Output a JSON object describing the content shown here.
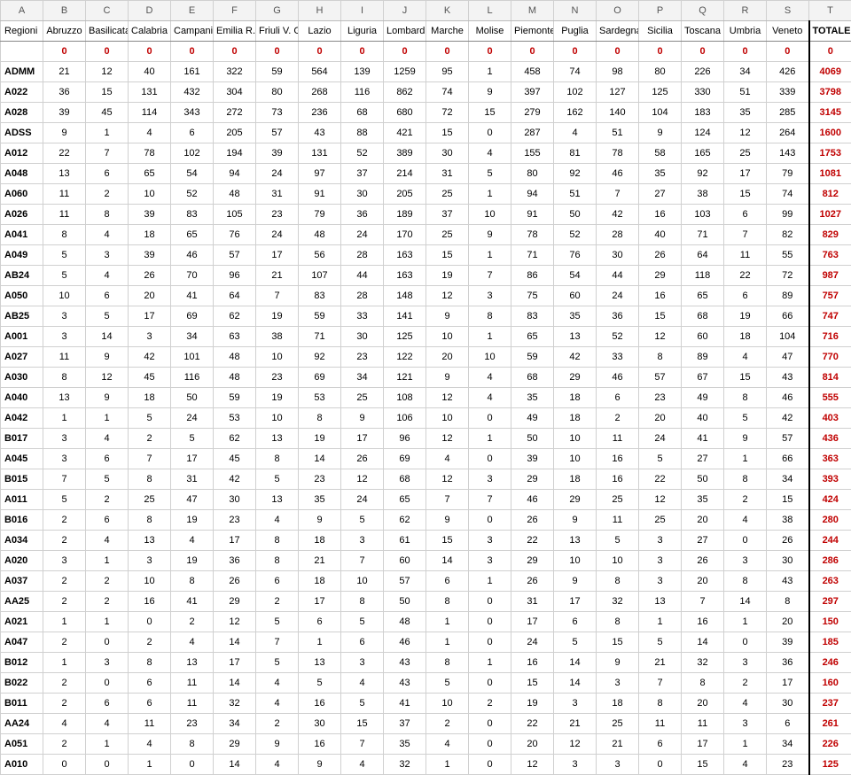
{
  "colors": {
    "total_red": "#c00000",
    "grid": "#d0d0d0",
    "header_bg": "#f3f3f3"
  },
  "column_letters": [
    "A",
    "B",
    "C",
    "D",
    "E",
    "F",
    "G",
    "H",
    "I",
    "J",
    "K",
    "L",
    "M",
    "N",
    "O",
    "P",
    "Q",
    "R",
    "S",
    "T"
  ],
  "region_headers": [
    "Regioni",
    "Abruzzo",
    "Basilicata",
    "Calabria",
    "Campania",
    "Emilia R.",
    "Friuli V. G",
    "Lazio",
    "Liguria",
    "Lombardia",
    "Marche",
    "Molise",
    "Piemonte",
    "Puglia",
    "Sardegna",
    "Sicilia",
    "Toscana",
    "Umbria",
    "Veneto",
    "TOTALE"
  ],
  "rows": [
    {
      "label": "",
      "values": [
        0,
        0,
        0,
        0,
        0,
        0,
        0,
        0,
        0,
        0,
        0,
        0,
        0,
        0,
        0,
        0,
        0,
        0
      ],
      "total": 0,
      "zero": true
    },
    {
      "label": "ADMM",
      "values": [
        21,
        12,
        40,
        161,
        322,
        59,
        564,
        139,
        1259,
        95,
        1,
        458,
        74,
        98,
        80,
        226,
        34,
        426
      ],
      "total": 4069
    },
    {
      "label": "A022",
      "values": [
        36,
        15,
        131,
        432,
        304,
        80,
        268,
        116,
        862,
        74,
        9,
        397,
        102,
        127,
        125,
        330,
        51,
        339
      ],
      "total": 3798
    },
    {
      "label": "A028",
      "values": [
        39,
        45,
        114,
        343,
        272,
        73,
        236,
        68,
        680,
        72,
        15,
        279,
        162,
        140,
        104,
        183,
        35,
        285
      ],
      "total": 3145
    },
    {
      "label": "ADSS",
      "values": [
        9,
        1,
        4,
        6,
        205,
        57,
        43,
        88,
        421,
        15,
        0,
        287,
        4,
        51,
        9,
        124,
        12,
        264
      ],
      "total": 1600
    },
    {
      "label": "A012",
      "values": [
        22,
        7,
        78,
        102,
        194,
        39,
        131,
        52,
        389,
        30,
        4,
        155,
        81,
        78,
        58,
        165,
        25,
        143
      ],
      "total": 1753
    },
    {
      "label": "A048",
      "values": [
        13,
        6,
        65,
        54,
        94,
        24,
        97,
        37,
        214,
        31,
        5,
        80,
        92,
        46,
        35,
        92,
        17,
        79
      ],
      "total": 1081
    },
    {
      "label": "A060",
      "values": [
        11,
        2,
        10,
        52,
        48,
        31,
        91,
        30,
        205,
        25,
        1,
        94,
        51,
        7,
        27,
        38,
        15,
        74
      ],
      "total": 812
    },
    {
      "label": "A026",
      "values": [
        11,
        8,
        39,
        83,
        105,
        23,
        79,
        36,
        189,
        37,
        10,
        91,
        50,
        42,
        16,
        103,
        6,
        99
      ],
      "total": 1027
    },
    {
      "label": "A041",
      "values": [
        8,
        4,
        18,
        65,
        76,
        24,
        48,
        24,
        170,
        25,
        9,
        78,
        52,
        28,
        40,
        71,
        7,
        82
      ],
      "total": 829
    },
    {
      "label": "A049",
      "values": [
        5,
        3,
        39,
        46,
        57,
        17,
        56,
        28,
        163,
        15,
        1,
        71,
        76,
        30,
        26,
        64,
        11,
        55
      ],
      "total": 763
    },
    {
      "label": "AB24",
      "values": [
        5,
        4,
        26,
        70,
        96,
        21,
        107,
        44,
        163,
        19,
        7,
        86,
        54,
        44,
        29,
        118,
        22,
        72
      ],
      "total": 987
    },
    {
      "label": "A050",
      "values": [
        10,
        6,
        20,
        41,
        64,
        7,
        83,
        28,
        148,
        12,
        3,
        75,
        60,
        24,
        16,
        65,
        6,
        89
      ],
      "total": 757
    },
    {
      "label": "AB25",
      "values": [
        3,
        5,
        17,
        69,
        62,
        19,
        59,
        33,
        141,
        9,
        8,
        83,
        35,
        36,
        15,
        68,
        19,
        66
      ],
      "total": 747
    },
    {
      "label": "A001",
      "values": [
        3,
        14,
        3,
        34,
        63,
        38,
        71,
        30,
        125,
        10,
        1,
        65,
        13,
        52,
        12,
        60,
        18,
        104
      ],
      "total": 716
    },
    {
      "label": "A027",
      "values": [
        11,
        9,
        42,
        101,
        48,
        10,
        92,
        23,
        122,
        20,
        10,
        59,
        42,
        33,
        8,
        89,
        4,
        47
      ],
      "total": 770
    },
    {
      "label": "A030",
      "values": [
        8,
        12,
        45,
        116,
        48,
        23,
        69,
        34,
        121,
        9,
        4,
        68,
        29,
        46,
        57,
        67,
        15,
        43
      ],
      "total": 814
    },
    {
      "label": "A040",
      "values": [
        13,
        9,
        18,
        50,
        59,
        19,
        53,
        25,
        108,
        12,
        4,
        35,
        18,
        6,
        23,
        49,
        8,
        46
      ],
      "total": 555
    },
    {
      "label": "A042",
      "values": [
        1,
        1,
        5,
        24,
        53,
        10,
        8,
        9,
        106,
        10,
        0,
        49,
        18,
        2,
        20,
        40,
        5,
        42
      ],
      "total": 403
    },
    {
      "label": "B017",
      "values": [
        3,
        4,
        2,
        5,
        62,
        13,
        19,
        17,
        96,
        12,
        1,
        50,
        10,
        11,
        24,
        41,
        9,
        57
      ],
      "total": 436
    },
    {
      "label": "A045",
      "values": [
        3,
        6,
        7,
        17,
        45,
        8,
        14,
        26,
        69,
        4,
        0,
        39,
        10,
        16,
        5,
        27,
        1,
        66
      ],
      "total": 363
    },
    {
      "label": "B015",
      "values": [
        7,
        5,
        8,
        31,
        42,
        5,
        23,
        12,
        68,
        12,
        3,
        29,
        18,
        16,
        22,
        50,
        8,
        34
      ],
      "total": 393
    },
    {
      "label": "A011",
      "values": [
        5,
        2,
        25,
        47,
        30,
        13,
        35,
        24,
        65,
        7,
        7,
        46,
        29,
        25,
        12,
        35,
        2,
        15
      ],
      "total": 424
    },
    {
      "label": "B016",
      "values": [
        2,
        6,
        8,
        19,
        23,
        4,
        9,
        5,
        62,
        9,
        0,
        26,
        9,
        11,
        25,
        20,
        4,
        38
      ],
      "total": 280
    },
    {
      "label": "A034",
      "values": [
        2,
        4,
        13,
        4,
        17,
        8,
        18,
        3,
        61,
        15,
        3,
        22,
        13,
        5,
        3,
        27,
        0,
        26
      ],
      "total": 244
    },
    {
      "label": "A020",
      "values": [
        3,
        1,
        3,
        19,
        36,
        8,
        21,
        7,
        60,
        14,
        3,
        29,
        10,
        10,
        3,
        26,
        3,
        30
      ],
      "total": 286
    },
    {
      "label": "A037",
      "values": [
        2,
        2,
        10,
        8,
        26,
        6,
        18,
        10,
        57,
        6,
        1,
        26,
        9,
        8,
        3,
        20,
        8,
        43
      ],
      "total": 263
    },
    {
      "label": "AA25",
      "values": [
        2,
        2,
        16,
        41,
        29,
        2,
        17,
        8,
        50,
        8,
        0,
        31,
        17,
        32,
        13,
        7,
        14,
        8
      ],
      "total": 297
    },
    {
      "label": "A021",
      "values": [
        1,
        1,
        0,
        2,
        12,
        5,
        6,
        5,
        48,
        1,
        0,
        17,
        6,
        8,
        1,
        16,
        1,
        20
      ],
      "total": 150
    },
    {
      "label": "A047",
      "values": [
        2,
        0,
        2,
        4,
        14,
        7,
        1,
        6,
        46,
        1,
        0,
        24,
        5,
        15,
        5,
        14,
        0,
        39
      ],
      "total": 185
    },
    {
      "label": "B012",
      "values": [
        1,
        3,
        8,
        13,
        17,
        5,
        13,
        3,
        43,
        8,
        1,
        16,
        14,
        9,
        21,
        32,
        3,
        36
      ],
      "total": 246
    },
    {
      "label": "B022",
      "values": [
        2,
        0,
        6,
        11,
        14,
        4,
        5,
        4,
        43,
        5,
        0,
        15,
        14,
        3,
        7,
        8,
        2,
        17
      ],
      "total": 160
    },
    {
      "label": "B011",
      "values": [
        2,
        6,
        6,
        11,
        32,
        4,
        16,
        5,
        41,
        10,
        2,
        19,
        3,
        18,
        8,
        20,
        4,
        30
      ],
      "total": 237
    },
    {
      "label": "AA24",
      "values": [
        4,
        4,
        11,
        23,
        34,
        2,
        30,
        15,
        37,
        2,
        0,
        22,
        21,
        25,
        11,
        11,
        3,
        6
      ],
      "total": 261
    },
    {
      "label": "A051",
      "values": [
        2,
        1,
        4,
        8,
        29,
        9,
        16,
        7,
        35,
        4,
        0,
        20,
        12,
        21,
        6,
        17,
        1,
        34
      ],
      "total": 226
    },
    {
      "label": "A010",
      "values": [
        0,
        0,
        1,
        0,
        14,
        4,
        9,
        4,
        32,
        1,
        0,
        12,
        3,
        3,
        0,
        15,
        4,
        23
      ],
      "total": 125
    }
  ]
}
